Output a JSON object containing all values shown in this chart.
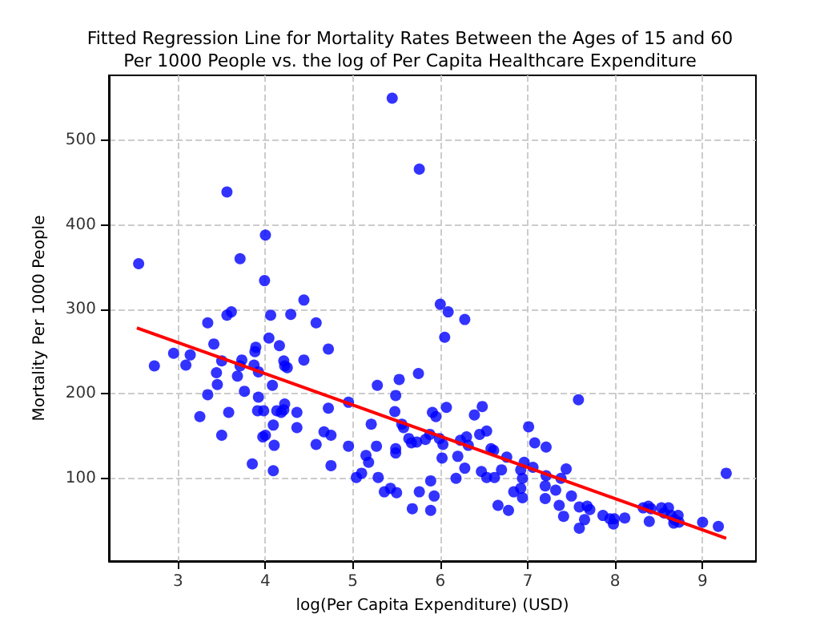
{
  "chart_data": {
    "type": "scatter",
    "title": "Fitted Regression Line for Mortality Rates Between the Ages of 15 and 60\nPer 1000 People vs. the log of Per Capita Healthcare Expenditure",
    "xlabel": "log(Per Capita Expenditure) (USD)",
    "ylabel": "Mortality Per 1000 People",
    "xlim": [
      2.21,
      9.61
    ],
    "ylim": [
      2,
      577
    ],
    "xticks": [
      3,
      4,
      5,
      6,
      7,
      8,
      9
    ],
    "yticks": [
      100,
      200,
      300,
      400,
      500
    ],
    "grid": true,
    "series": [
      {
        "marker": "circle",
        "color": "#0000ff",
        "x": [
          5.45,
          5.76,
          3.56,
          4.0,
          2.55,
          3.71,
          3.99,
          4.44,
          6.0,
          6.09,
          6.28,
          6.05,
          3.61,
          3.56,
          4.06,
          4.29,
          3.34,
          4.58,
          4.04,
          3.41,
          4.16,
          3.89,
          3.88,
          2.95,
          3.14,
          4.72,
          2.73,
          3.09,
          3.5,
          3.73,
          4.21,
          4.22,
          4.25,
          4.44,
          3.87,
          3.71,
          3.92,
          3.44,
          3.68,
          3.45,
          4.08,
          3.34,
          3.76,
          3.92,
          4.95,
          4.72,
          5.49,
          5.48,
          5.75,
          5.53,
          5.28,
          3.91,
          3.98,
          3.25,
          3.58,
          4.13,
          4.18,
          4.22,
          4.21,
          4.36,
          4.09,
          4.36,
          3.5,
          3.97,
          4.0,
          4.67,
          4.75,
          4.1,
          4.58,
          4.95,
          5.21,
          5.15,
          5.18,
          5.27,
          5.49,
          5.49,
          5.58,
          5.56,
          5.64,
          5.67,
          5.73,
          5.88,
          5.91,
          3.85,
          4.09,
          4.75,
          5.04,
          5.1,
          5.29,
          5.36,
          5.43,
          5.5,
          5.68,
          5.76,
          5.89,
          5.89,
          5.93,
          7.58,
          5.95,
          6.07,
          5.99,
          6.03,
          6.02,
          5.83,
          6.2,
          6.23,
          6.3,
          6.32,
          6.18,
          6.28,
          6.39,
          6.48,
          6.45,
          6.53,
          6.58,
          6.61,
          6.47,
          6.53,
          6.62,
          6.7,
          6.76,
          6.66,
          6.78,
          6.84,
          6.92,
          6.96,
          6.94,
          6.92,
          6.94,
          7.01,
          7.08,
          7.06,
          7.21,
          7.21,
          7.2,
          7.2,
          7.32,
          7.38,
          7.44,
          7.36,
          7.41,
          7.5,
          7.59,
          7.68,
          7.71,
          7.65,
          7.59,
          7.86,
          7.94,
          7.99,
          7.98,
          8.11,
          8.32,
          8.38,
          8.41,
          8.39,
          8.53,
          8.61,
          8.56,
          8.64,
          8.68,
          8.72,
          8.73,
          8.67,
          9.0,
          9.18,
          9.27
        ],
        "values": [
          550,
          466,
          439,
          388,
          354,
          360,
          334,
          311,
          306,
          297,
          288,
          267,
          297,
          293,
          293,
          294,
          284,
          284,
          266,
          259,
          257,
          255,
          250,
          248,
          246,
          253,
          233,
          234,
          239,
          240,
          239,
          233,
          231,
          240,
          234,
          233,
          226,
          225,
          221,
          211,
          210,
          199,
          203,
          196,
          190,
          183,
          198,
          179,
          224,
          217,
          210,
          180,
          180,
          173,
          178,
          180,
          178,
          188,
          181,
          178,
          163,
          160,
          151,
          149,
          151,
          155,
          151,
          139,
          140,
          138,
          164,
          127,
          119,
          138,
          135,
          130,
          160,
          164,
          147,
          142,
          143,
          152,
          178,
          117,
          109,
          115,
          101,
          106,
          101,
          84,
          88,
          83,
          64,
          84,
          97,
          62,
          79,
          193,
          173,
          184,
          147,
          140,
          124,
          146,
          126,
          145,
          149,
          139,
          100,
          112,
          175,
          185,
          152,
          156,
          135,
          133,
          108,
          101,
          101,
          110,
          125,
          68,
          62,
          84,
          110,
          119,
          100,
          88,
          77,
          161,
          142,
          113,
          137,
          103,
          91,
          76,
          86,
          100,
          111,
          68,
          55,
          79,
          66,
          67,
          63,
          51,
          41,
          56,
          52,
          52,
          46,
          53,
          65,
          67,
          64,
          49,
          65,
          65,
          59,
          56,
          51,
          56,
          48,
          47,
          48,
          43,
          106
        ]
      },
      {
        "type": "line",
        "color": "#ff0000",
        "x": [
          2.53,
          9.27
        ],
        "values": [
          278,
          29
        ]
      }
    ]
  }
}
